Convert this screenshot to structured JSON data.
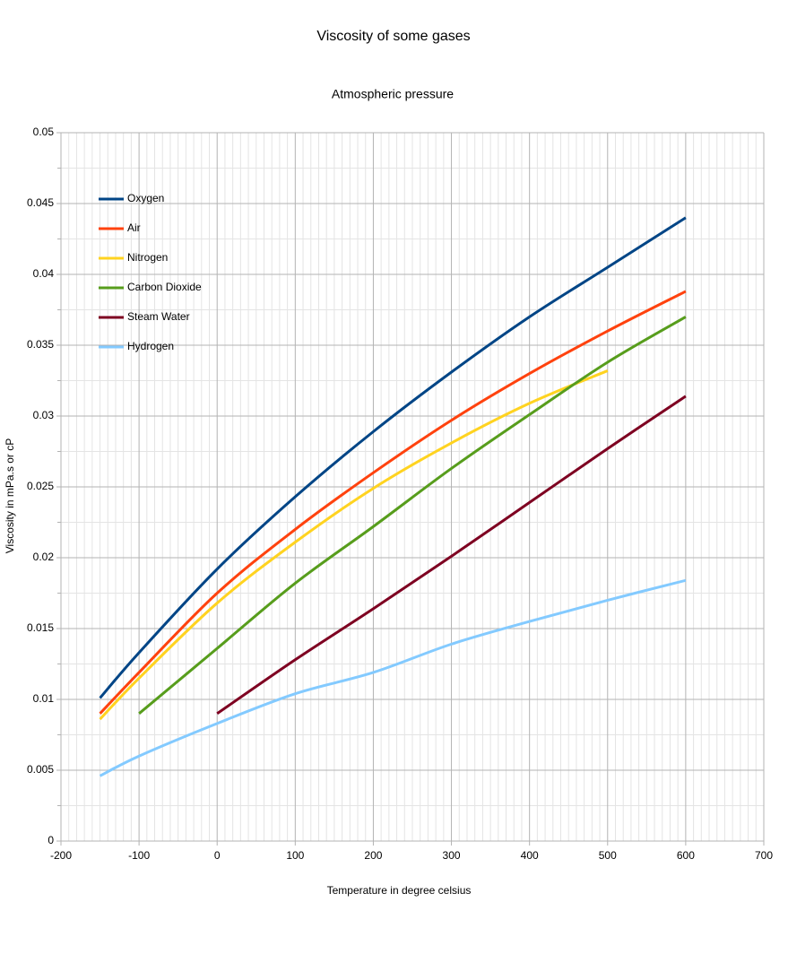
{
  "chart_data": {
    "type": "line",
    "title": "Viscosity of some gases",
    "subtitle": "Atmospheric pressure",
    "x_label": "Temperature in degree celsius",
    "y_label": "Viscosity in mPa.s or cP",
    "xlim": [
      -200,
      700
    ],
    "xticks": [
      -200,
      -100,
      0,
      100,
      200,
      300,
      400,
      500,
      600,
      700
    ],
    "ylim": [
      0,
      0.05
    ],
    "yticks": [
      0,
      0.005,
      0.01,
      0.015,
      0.02,
      0.025,
      0.03,
      0.035,
      0.04,
      0.045,
      0.05
    ],
    "grid": true,
    "minor_grid": true,
    "legend": "upper left",
    "series": [
      {
        "name": "Oxygen",
        "color": "#004586",
        "x": [
          -150,
          -100,
          0,
          100,
          200,
          300,
          400,
          500,
          600
        ],
        "values": [
          0.0101,
          0.0133,
          0.0192,
          0.0243,
          0.0289,
          0.0331,
          0.037,
          0.0405,
          0.044
        ]
      },
      {
        "name": "Air",
        "color": "#ff420e",
        "x": [
          -150,
          -100,
          0,
          100,
          200,
          300,
          400,
          500,
          600
        ],
        "values": [
          0.009,
          0.0119,
          0.0175,
          0.022,
          0.026,
          0.0297,
          0.033,
          0.036,
          0.0388
        ]
      },
      {
        "name": "Nitrogen",
        "color": "#ffd320",
        "x": [
          -150,
          -100,
          0,
          100,
          200,
          300,
          400,
          500
        ],
        "values": [
          0.0086,
          0.0115,
          0.0168,
          0.0211,
          0.0249,
          0.0281,
          0.0309,
          0.0332
        ]
      },
      {
        "name": "Carbon Dioxide",
        "color": "#579d1c",
        "x": [
          -100,
          0,
          100,
          200,
          300,
          400,
          500,
          600
        ],
        "values": [
          0.009,
          0.0136,
          0.0182,
          0.0222,
          0.0263,
          0.0301,
          0.0338,
          0.037
        ]
      },
      {
        "name": "Steam Water",
        "color": "#7e0021",
        "x": [
          0,
          100,
          200,
          300,
          400,
          500,
          600
        ],
        "values": [
          0.009,
          0.0128,
          0.0164,
          0.0201,
          0.0239,
          0.0277,
          0.0314
        ]
      },
      {
        "name": "Hydrogen",
        "color": "#83caff",
        "x": [
          -150,
          -100,
          0,
          100,
          200,
          300,
          400,
          500,
          600
        ],
        "values": [
          0.0046,
          0.006,
          0.0083,
          0.0104,
          0.0119,
          0.0139,
          0.0155,
          0.017,
          0.0184
        ]
      }
    ]
  }
}
